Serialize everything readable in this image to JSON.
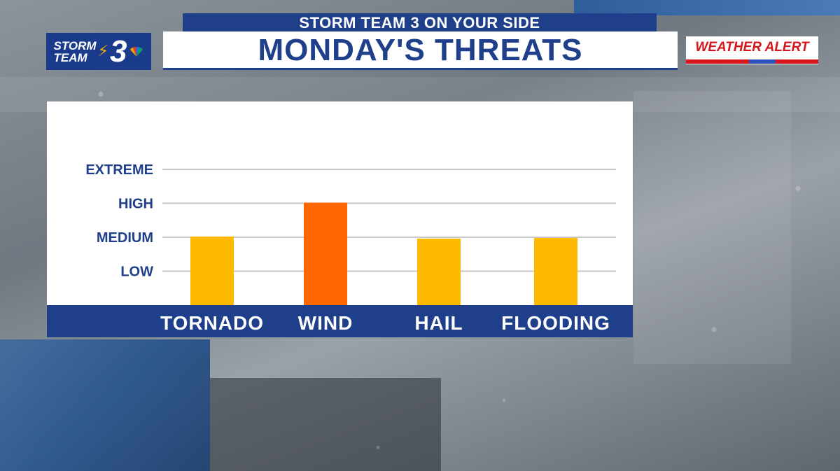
{
  "header": {
    "banner": "STORM TEAM 3 ON YOUR SIDE",
    "title": "MONDAY'S THREATS"
  },
  "logo": {
    "line1": "STORM",
    "line2": "TEAM",
    "number": "3"
  },
  "alert": {
    "label": "WEATHER ALERT"
  },
  "colors": {
    "navy": "#1f3f8a",
    "medium_bar": "#ffba00",
    "high_bar": "#ff6600",
    "alert_red": "#d6141b"
  },
  "chart_data": {
    "type": "bar",
    "title": "MONDAY'S THREATS",
    "categories": [
      "TORNADO",
      "WIND",
      "HAIL",
      "FLOODING"
    ],
    "values": [
      2.02,
      3.02,
      1.96,
      1.98
    ],
    "bar_colors": [
      "#ffba00",
      "#ff6600",
      "#ffba00",
      "#ffba00"
    ],
    "y_levels": [
      "LOW",
      "MEDIUM",
      "HIGH",
      "EXTREME"
    ],
    "ylim": [
      0,
      4
    ],
    "grid": true
  }
}
